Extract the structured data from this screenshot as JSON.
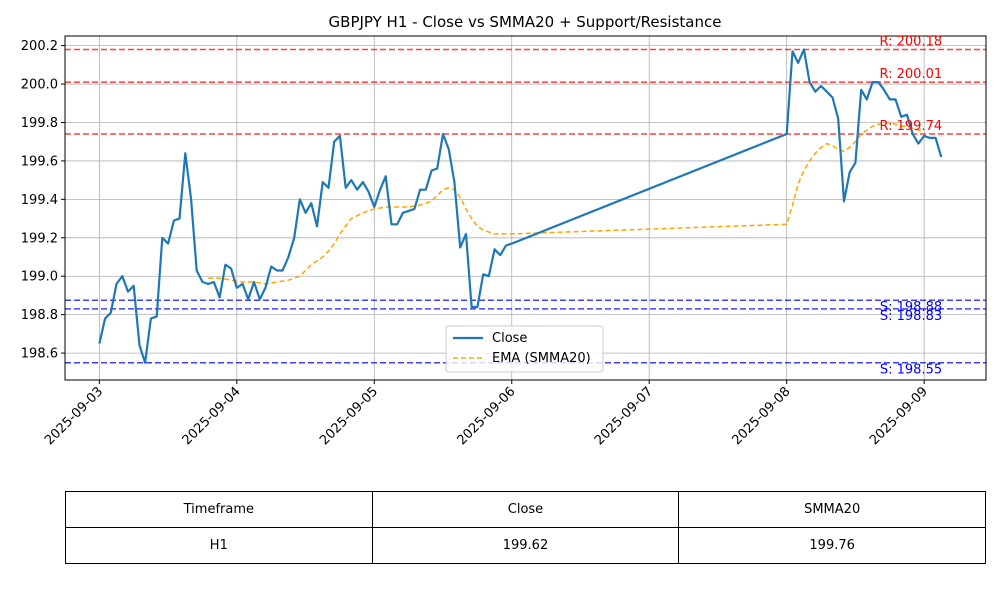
{
  "chart_data": {
    "type": "line",
    "title": "GBPJPY H1 - Close vs SMMA20 + Support/Resistance",
    "xlabel": "",
    "ylabel": "",
    "x_tick_labels": [
      "2025-09-03",
      "2025-09-04",
      "2025-09-05",
      "2025-09-06",
      "2025-09-07",
      "2025-09-08",
      "2025-09-09"
    ],
    "x_range_days": [
      -0.25,
      6.45
    ],
    "ylim": [
      198.46,
      200.25
    ],
    "y_ticks": [
      198.6,
      198.8,
      199.0,
      199.2,
      199.4,
      199.6,
      199.8,
      200.0,
      200.2
    ],
    "y_tick_labels": [
      "198.6",
      "198.8",
      "199.0",
      "199.2",
      "199.4",
      "199.6",
      "199.8",
      "200.0",
      "200.2"
    ],
    "grid": true,
    "legend_position": "lower-center",
    "series": [
      {
        "name": "Close",
        "color": "#1f77b4",
        "style": "solid",
        "x_days": [
          0.0,
          0.042,
          0.083,
          0.125,
          0.167,
          0.208,
          0.25,
          0.292,
          0.333,
          0.375,
          0.417,
          0.458,
          0.5,
          0.542,
          0.583,
          0.625,
          0.667,
          0.708,
          0.75,
          0.792,
          0.833,
          0.875,
          0.917,
          0.958,
          1.0,
          1.042,
          1.083,
          1.125,
          1.167,
          1.208,
          1.25,
          1.292,
          1.333,
          1.375,
          1.417,
          1.458,
          1.5,
          1.542,
          1.583,
          1.625,
          1.667,
          1.708,
          1.75,
          1.792,
          1.833,
          1.875,
          1.917,
          1.958,
          2.0,
          2.042,
          2.083,
          2.125,
          2.167,
          2.208,
          2.25,
          2.292,
          2.333,
          2.375,
          2.417,
          2.458,
          2.5,
          2.542,
          2.583,
          2.625,
          2.667,
          2.708,
          2.75,
          2.792,
          2.833,
          2.875,
          2.917,
          2.958,
          3.0,
          5.0,
          5.042,
          5.083,
          5.125,
          5.167,
          5.208,
          5.25,
          5.292,
          5.333,
          5.375,
          5.417,
          5.458,
          5.5,
          5.542,
          5.583,
          5.625,
          5.667,
          5.708,
          5.75,
          5.792,
          5.833,
          5.875,
          5.917,
          5.958,
          6.0,
          6.042,
          6.083,
          6.125
        ],
        "values": [
          198.65,
          198.78,
          198.81,
          198.96,
          199.0,
          198.92,
          198.95,
          198.64,
          198.55,
          198.78,
          198.79,
          199.2,
          199.17,
          199.29,
          199.3,
          199.64,
          199.4,
          199.03,
          198.97,
          198.96,
          198.97,
          198.89,
          199.06,
          199.04,
          198.94,
          198.96,
          198.88,
          198.97,
          198.88,
          198.94,
          199.05,
          199.03,
          199.03,
          199.1,
          199.2,
          199.4,
          199.33,
          199.38,
          199.26,
          199.49,
          199.46,
          199.7,
          199.73,
          199.46,
          199.5,
          199.45,
          199.49,
          199.44,
          199.36,
          199.45,
          199.52,
          199.27,
          199.27,
          199.33,
          199.34,
          199.35,
          199.45,
          199.45,
          199.55,
          199.56,
          199.74,
          199.66,
          199.49,
          199.15,
          199.22,
          198.84,
          198.84,
          199.01,
          199.0,
          199.14,
          199.11,
          199.16,
          199.17,
          199.74,
          200.17,
          200.11,
          200.18,
          200.01,
          199.96,
          199.99,
          199.96,
          199.93,
          199.82,
          199.39,
          199.54,
          199.59,
          199.97,
          199.92,
          200.01,
          200.01,
          199.97,
          199.92,
          199.92,
          199.83,
          199.84,
          199.74,
          199.69,
          199.73,
          199.72,
          199.72,
          199.62
        ]
      },
      {
        "name": "EMA (SMMA20)",
        "color": "#ffa500",
        "style": "dashed",
        "x_days": [
          0.792,
          0.875,
          0.958,
          1.042,
          1.125,
          1.208,
          1.292,
          1.375,
          1.458,
          1.542,
          1.625,
          1.667,
          1.708,
          1.75,
          1.833,
          1.917,
          2.0,
          2.083,
          2.167,
          2.25,
          2.333,
          2.417,
          2.458,
          2.5,
          2.542,
          2.583,
          2.625,
          2.667,
          2.708,
          2.75,
          2.792,
          2.833,
          2.875,
          2.917,
          3.0,
          5.0,
          5.042,
          5.083,
          5.125,
          5.167,
          5.208,
          5.25,
          5.292,
          5.333,
          5.375,
          5.417,
          5.458,
          5.5,
          5.542,
          5.583,
          5.625,
          5.667,
          5.708,
          5.75,
          5.792,
          5.833,
          5.875,
          5.917,
          5.958,
          6.0
        ],
        "values": [
          198.99,
          198.99,
          198.98,
          198.97,
          198.97,
          198.96,
          198.97,
          198.98,
          199.0,
          199.06,
          199.1,
          199.13,
          199.17,
          199.22,
          199.3,
          199.33,
          199.35,
          199.36,
          199.36,
          199.36,
          199.37,
          199.39,
          199.42,
          199.45,
          199.46,
          199.45,
          199.41,
          199.35,
          199.3,
          199.26,
          199.24,
          199.23,
          199.22,
          199.22,
          199.22,
          199.27,
          199.37,
          199.48,
          199.55,
          199.6,
          199.64,
          199.67,
          199.69,
          199.68,
          199.66,
          199.65,
          199.67,
          199.7,
          199.74,
          199.76,
          199.78,
          199.79,
          199.8,
          199.8,
          199.79,
          199.78,
          199.78,
          199.77,
          199.76,
          199.76
        ]
      }
    ],
    "resistance_levels": [
      {
        "label": "R: 200.18",
        "value": 200.18
      },
      {
        "label": "R: 200.01",
        "value": 200.01
      },
      {
        "label": "R: 199.74",
        "value": 199.74
      }
    ],
    "support_levels": [
      {
        "label": "S: 198.88",
        "value": 198.875
      },
      {
        "label": "S: 198.83",
        "value": 198.83
      },
      {
        "label": "S: 198.55",
        "value": 198.55
      }
    ],
    "resistance_color": "#ff0000",
    "support_color": "#0000ff"
  },
  "table": {
    "headers": [
      "Timeframe",
      "Close",
      "SMMA20"
    ],
    "row": [
      "H1",
      "199.62",
      "199.76"
    ]
  }
}
